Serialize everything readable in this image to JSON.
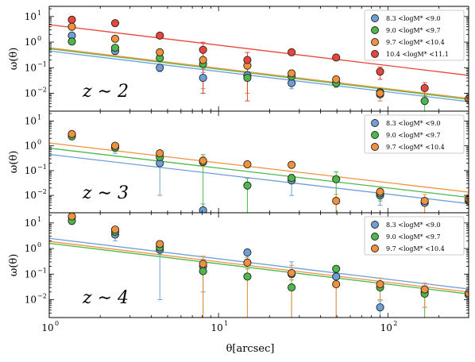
{
  "figure": {
    "xlabel": "θ[arcsec]",
    "ylabel": "ω(θ)",
    "xlim": [
      1,
      300
    ],
    "ylim": [
      0.002,
      25
    ],
    "xscale": "log",
    "yscale": "log",
    "x_ticks": [
      {
        "base": "10",
        "exp": "0"
      },
      {
        "base": "10",
        "exp": "1"
      },
      {
        "base": "10",
        "exp": "2"
      }
    ],
    "y_ticks": [
      {
        "base": "10",
        "exp": "1"
      },
      {
        "base": "10",
        "exp": "0"
      },
      {
        "base": "10",
        "exp": "−1"
      },
      {
        "base": "10",
        "exp": "−2"
      }
    ],
    "colors": {
      "8.3-9.0": "#6f9fd8",
      "9.0-9.7": "#4cb84c",
      "9.7-10.4": "#f2913d",
      "10.4-11.1": "#e8463a"
    },
    "marker_edge": "#222222",
    "legend_placement": "top-right"
  },
  "chart_data": [
    {
      "type": "scatter",
      "panel_label": "z ∼ 2",
      "x": [
        1.36,
        2.45,
        4.5,
        8.1,
        14.8,
        27,
        49.5,
        90,
        165,
        300
      ],
      "series": [
        {
          "name": "8.3 <logM* <9.0",
          "color": "#6f9fd8",
          "values": [
            1.8,
            0.45,
            0.1,
            0.04,
            0.05,
            0.025,
            0.025,
            0.009,
            null,
            null
          ],
          "errors": [
            0.5,
            0.12,
            0.03,
            0.025,
            0.02,
            0.01,
            0.006,
            0.004,
            null,
            null
          ],
          "fit": [
            0.45,
            -0.8
          ]
        },
        {
          "name": "9.0 <logM* <9.7",
          "color": "#4cb84c",
          "values": [
            1.05,
            0.6,
            0.24,
            0.14,
            0.04,
            0.045,
            0.025,
            0.011,
            0.005,
            null
          ],
          "errors": [
            0.25,
            0.15,
            0.06,
            0.05,
            0.03,
            0.015,
            0.008,
            0.004,
            0.003,
            null
          ],
          "fit": [
            0.55,
            -0.8
          ]
        },
        {
          "name": "9.7 <logM* <10.4",
          "color": "#f2913d",
          "values": [
            4.0,
            1.35,
            0.4,
            0.2,
            0.12,
            0.06,
            0.035,
            0.01,
            null,
            0.006
          ],
          "errors": [
            1.0,
            0.35,
            0.1,
            0.19,
            0.11,
            0.02,
            0.01,
            0.005,
            null,
            0.004
          ],
          "fit": [
            0.6,
            -0.8
          ]
        },
        {
          "name": "10.4 <logM* <11.1",
          "color": "#e8463a",
          "values": [
            7.5,
            5.5,
            1.8,
            0.5,
            0.2,
            0.4,
            0.25,
            0.07,
            0.016,
            null
          ],
          "errors": [
            1.5,
            1.0,
            0.4,
            0.49,
            0.195,
            0.1,
            0.06,
            0.035,
            0.01,
            null
          ],
          "fit": [
            4.8,
            -0.8
          ]
        }
      ]
    },
    {
      "type": "scatter",
      "panel_label": "z ∼ 3",
      "x": [
        1.36,
        2.45,
        4.5,
        8.1,
        14.8,
        27,
        49.5,
        90,
        165,
        300
      ],
      "series": [
        {
          "name": "8.3 <logM* <9.0",
          "color": "#6f9fd8",
          "values": [
            2.6,
            0.9,
            0.2,
            0.0025,
            null,
            0.04,
            null,
            0.01,
            0.005,
            null
          ],
          "errors": [
            0.8,
            0.4,
            0.19,
            0.002,
            null,
            0.03,
            null,
            0.006,
            0.003,
            null
          ],
          "fit": [
            0.45,
            -0.8
          ]
        },
        {
          "name": "9.0 <logM* <9.7",
          "color": "#4cb84c",
          "values": [
            2.4,
            0.85,
            0.35,
            0.22,
            0.025,
            0.05,
            0.045,
            0.012,
            null,
            0.006
          ],
          "errors": [
            0.6,
            0.25,
            0.12,
            0.219,
            0.024,
            0.02,
            0.044,
            0.006,
            null,
            0.004
          ],
          "fit": [
            0.8,
            -0.8
          ]
        },
        {
          "name": "9.7 <logM* <10.4",
          "color": "#f2913d",
          "values": [
            3.0,
            1.0,
            0.5,
            0.25,
            0.18,
            0.17,
            0.006,
            0.014,
            0.006,
            0.007
          ],
          "errors": [
            0.5,
            0.2,
            0.15,
            0.1,
            0.05,
            0.04,
            0.005,
            0.005,
            0.005,
            0.004
          ],
          "fit": [
            1.3,
            -0.8
          ]
        }
      ]
    },
    {
      "type": "scatter",
      "panel_label": "z ∼ 4",
      "x": [
        1.36,
        2.45,
        4.5,
        8.1,
        14.8,
        27,
        49.5,
        90,
        165,
        300
      ],
      "series": [
        {
          "name": "8.3 <logM* <9.0",
          "color": "#6f9fd8",
          "values": [
            17.0,
            3.5,
            0.9,
            0.2,
            0.7,
            0.1,
            0.08,
            0.005,
            0.02,
            null
          ],
          "errors": [
            5.0,
            1.5,
            0.89,
            0.18,
            0.25,
            0.2,
            0.079,
            0.004,
            0.015,
            null
          ],
          "fit": [
            2.5,
            -0.8
          ]
        },
        {
          "name": "9.0 <logM* <9.7",
          "color": "#4cb84c",
          "values": [
            12.0,
            4.5,
            1.1,
            0.13,
            0.08,
            0.03,
            0.16,
            0.03,
            0.017,
            0.015
          ],
          "errors": [
            3.0,
            1.0,
            0.5,
            0.129,
            0.079,
            0.029,
            0.05,
            0.02,
            0.015,
            0.01
          ],
          "fit": [
            1.6,
            -0.8
          ]
        },
        {
          "name": "9.7 <logM* <10.4",
          "color": "#f2913d",
          "values": [
            18.0,
            5.5,
            1.5,
            0.25,
            0.28,
            0.11,
            0.04,
            0.04,
            0.025,
            0.018
          ],
          "errors": [
            4.0,
            1.5,
            0.5,
            0.249,
            0.279,
            0.109,
            0.039,
            0.03,
            0.02,
            0.012
          ],
          "fit": [
            1.9,
            -0.8
          ]
        }
      ]
    }
  ]
}
